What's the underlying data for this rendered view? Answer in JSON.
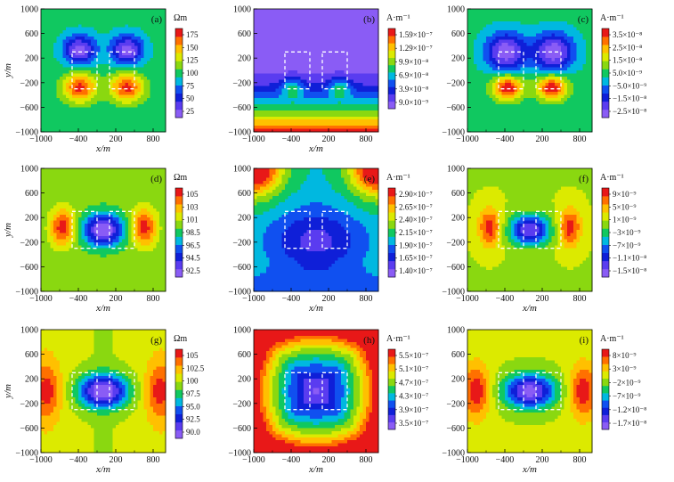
{
  "chart_data": [
    {
      "type": "heatmap",
      "label": "(a)",
      "unit": "Ωm",
      "field": "resistivity",
      "colorbar_ticks": [
        "175",
        "150",
        "125",
        "100",
        "75",
        "50",
        "25"
      ],
      "value_range": [
        20,
        185
      ],
      "xlabel": "x/m",
      "ylabel": "y/m",
      "x_ticks": [
        "−1000",
        "−400",
        "200",
        "800"
      ],
      "y_ticks": [
        "1000",
        "600",
        "200",
        "−200",
        "−600",
        "−1000"
      ],
      "xlim": [
        -1000,
        1000
      ],
      "ylim": [
        -1000,
        1000
      ],
      "bodies": [
        [
          -500,
          -300,
          -100,
          300
        ],
        [
          100,
          -300,
          500,
          300
        ]
      ]
    },
    {
      "type": "heatmap",
      "label": "(b)",
      "unit": "A·m⁻¹",
      "field": "current_b",
      "colorbar_ticks": [
        "1.59×10⁻⁷",
        "1.29×10⁻⁷",
        "9.9×10⁻⁸",
        "6.9×10⁻⁸",
        "3.9×10⁻⁸",
        "9.0×10⁻⁹"
      ],
      "value_range": [
        0,
        1.75e-07
      ],
      "xlabel": "x/m",
      "ylabel": "",
      "x_ticks": [
        "−1000",
        "−400",
        "200",
        "800"
      ],
      "y_ticks": [
        "1000",
        "600",
        "200",
        "−200",
        "−600",
        "−1000"
      ],
      "xlim": [
        -1000,
        1000
      ],
      "ylim": [
        -1000,
        1000
      ],
      "bodies": [
        [
          -500,
          -300,
          -100,
          300
        ],
        [
          100,
          -300,
          500,
          300
        ]
      ]
    },
    {
      "type": "heatmap",
      "label": "(c)",
      "unit": "A·m⁻¹",
      "field": "current_c",
      "colorbar_ticks": [
        "3.5×10⁻⁸",
        "2.5×10⁻⁸",
        "1.5×10⁻⁸",
        "5.0×10⁻⁹",
        "−5.0×10⁻⁹",
        "−1.5×10⁻⁸",
        "−2.5×10⁻⁸"
      ],
      "value_range": [
        -3.2e-08,
        4.2e-08
      ],
      "xlabel": "",
      "ylabel": "",
      "x_ticks": [
        "−1000",
        "−400",
        "200",
        "800"
      ],
      "y_ticks": [
        "1000",
        "600",
        "200",
        "−200",
        "−600",
        "−1000"
      ],
      "xlim": [
        -1000,
        1000
      ],
      "ylim": [
        -1000,
        1000
      ],
      "bodies": [
        [
          -500,
          -300,
          -100,
          300
        ],
        [
          100,
          -300,
          500,
          300
        ]
      ]
    },
    {
      "type": "heatmap",
      "label": "(d)",
      "unit": "Ωm",
      "field": "resistivity_d",
      "colorbar_ticks": [
        "105",
        "103",
        "101",
        "98.5",
        "96.5",
        "94.5",
        "92.5"
      ],
      "value_range": [
        91,
        106.5
      ],
      "xlabel": "x/m",
      "ylabel": "y/m",
      "x_ticks": [
        "−1000",
        "−400",
        "200",
        "800"
      ],
      "y_ticks": [
        "1000",
        "600",
        "200",
        "−200",
        "−600",
        "−1000"
      ],
      "xlim": [
        -1000,
        1000
      ],
      "ylim": [
        -1000,
        1000
      ],
      "bodies": [
        [
          -500,
          -300,
          -100,
          300
        ],
        [
          100,
          -300,
          500,
          300
        ]
      ]
    },
    {
      "type": "heatmap",
      "label": "(e)",
      "unit": "A·m⁻¹",
      "field": "current_e",
      "colorbar_ticks": [
        "2.90×10⁻⁷",
        "2.65×10⁻⁷",
        "2.40×10⁻⁷",
        "2.15×10⁻⁷",
        "1.90×10⁻⁷",
        "1.65×10⁻⁷",
        "1.40×10⁻⁷"
      ],
      "value_range": [
        1.3e-07,
        3e-07
      ],
      "xlabel": "x/m",
      "ylabel": "",
      "x_ticks": [
        "−1000",
        "−400",
        "200",
        "800"
      ],
      "y_ticks": [
        "1000",
        "600",
        "200",
        "−200",
        "−600",
        "−1000"
      ],
      "xlim": [
        -1000,
        1000
      ],
      "ylim": [
        -1000,
        1000
      ],
      "bodies": [
        [
          -500,
          -300,
          -100,
          300
        ],
        [
          100,
          -300,
          500,
          300
        ]
      ]
    },
    {
      "type": "heatmap",
      "label": "(f)",
      "unit": "A·m⁻¹",
      "field": "current_f",
      "colorbar_ticks": [
        "9×10⁻⁹",
        "5×10⁻⁹",
        "1×10⁻⁹",
        "−3×10⁻⁹",
        "−7×10⁻⁹",
        "−1.1×10⁻⁸",
        "−1.5×10⁻⁸"
      ],
      "value_range": [
        -1.8e-08,
        1.2e-08
      ],
      "xlabel": "x/m",
      "ylabel": "",
      "x_ticks": [
        "−1000",
        "−400",
        "200",
        "800"
      ],
      "y_ticks": [
        "1000",
        "600",
        "200",
        "−200",
        "−600",
        "−1000"
      ],
      "xlim": [
        -1000,
        1000
      ],
      "ylim": [
        -1000,
        1000
      ],
      "bodies": [
        [
          -500,
          -300,
          -100,
          300
        ],
        [
          100,
          -300,
          500,
          300
        ]
      ]
    },
    {
      "type": "heatmap",
      "label": "(g)",
      "unit": "Ωm",
      "field": "resistivity_g",
      "colorbar_ticks": [
        "105",
        "102.5",
        "100",
        "97.5",
        "95.0",
        "92.5",
        "90.0"
      ],
      "value_range": [
        88.5,
        106.5
      ],
      "xlabel": "x/m",
      "ylabel": "y/m",
      "x_ticks": [
        "−1000",
        "−400",
        "200",
        "800"
      ],
      "y_ticks": [
        "1000",
        "600",
        "200",
        "−200",
        "−600",
        "−1000"
      ],
      "xlim": [
        -1000,
        1000
      ],
      "ylim": [
        -1000,
        1000
      ],
      "bodies": [
        [
          -500,
          -300,
          -100,
          300
        ],
        [
          100,
          -300,
          500,
          300
        ]
      ]
    },
    {
      "type": "heatmap",
      "label": "(h)",
      "unit": "A·m⁻¹",
      "field": "current_h",
      "colorbar_ticks": [
        "5.5×10⁻⁷",
        "5.1×10⁻⁷",
        "4.7×10⁻⁷",
        "4.3×10⁻⁷",
        "3.9×10⁻⁷",
        "3.5×10⁻⁷"
      ],
      "value_range": [
        3.3e-07,
        5.8e-07
      ],
      "xlabel": "x/m",
      "ylabel": "",
      "x_ticks": [
        "−1000",
        "−400",
        "200",
        "800"
      ],
      "y_ticks": [
        "1000",
        "600",
        "200",
        "−200",
        "−600",
        "−1000"
      ],
      "xlim": [
        -1000,
        1000
      ],
      "ylim": [
        -1000,
        1000
      ],
      "bodies": [
        [
          -500,
          -300,
          -100,
          300
        ],
        [
          100,
          -300,
          500,
          300
        ]
      ]
    },
    {
      "type": "heatmap",
      "label": "(i)",
      "unit": "A·m⁻¹",
      "field": "current_i",
      "colorbar_ticks": [
        "8×10⁻⁹",
        "3×10⁻⁹",
        "−2×10⁻⁹",
        "−7×10⁻⁹",
        "−1.2×10⁻⁸",
        "−1.7×10⁻⁸"
      ],
      "value_range": [
        -2e-08,
        1.1e-08
      ],
      "xlabel": "x/m",
      "ylabel": "",
      "x_ticks": [
        "−1000",
        "−400",
        "200",
        "800"
      ],
      "y_ticks": [
        "1000",
        "600",
        "200",
        "−200",
        "−600",
        "−1000"
      ],
      "xlim": [
        -1000,
        1000
      ],
      "ylim": [
        -1000,
        1000
      ],
      "bodies": [
        [
          -500,
          -300,
          -100,
          300
        ],
        [
          100,
          -300,
          500,
          300
        ]
      ]
    }
  ],
  "colormap": [
    "#8a5cf5",
    "#5a3cf0",
    "#0f1fd8",
    "#1050f0",
    "#00b8e0",
    "#10c860",
    "#8ad810",
    "#dcea00",
    "#ffc000",
    "#ff7000",
    "#e81818"
  ]
}
